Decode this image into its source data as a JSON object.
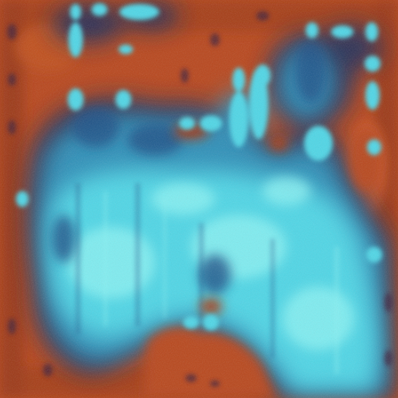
{
  "image": {
    "kind": "abstract false-color texture",
    "palette": {
      "background_warm": "#b8461c",
      "warm_dark": "#7a2a14",
      "warm_light": "#d2602a",
      "cool_dark": "#1d4f86",
      "cool_mid": "#2f8fb8",
      "cool_light": "#4fd6e6",
      "cool_highlight": "#8ff4f4",
      "navy": "#1b2d5c"
    }
  }
}
